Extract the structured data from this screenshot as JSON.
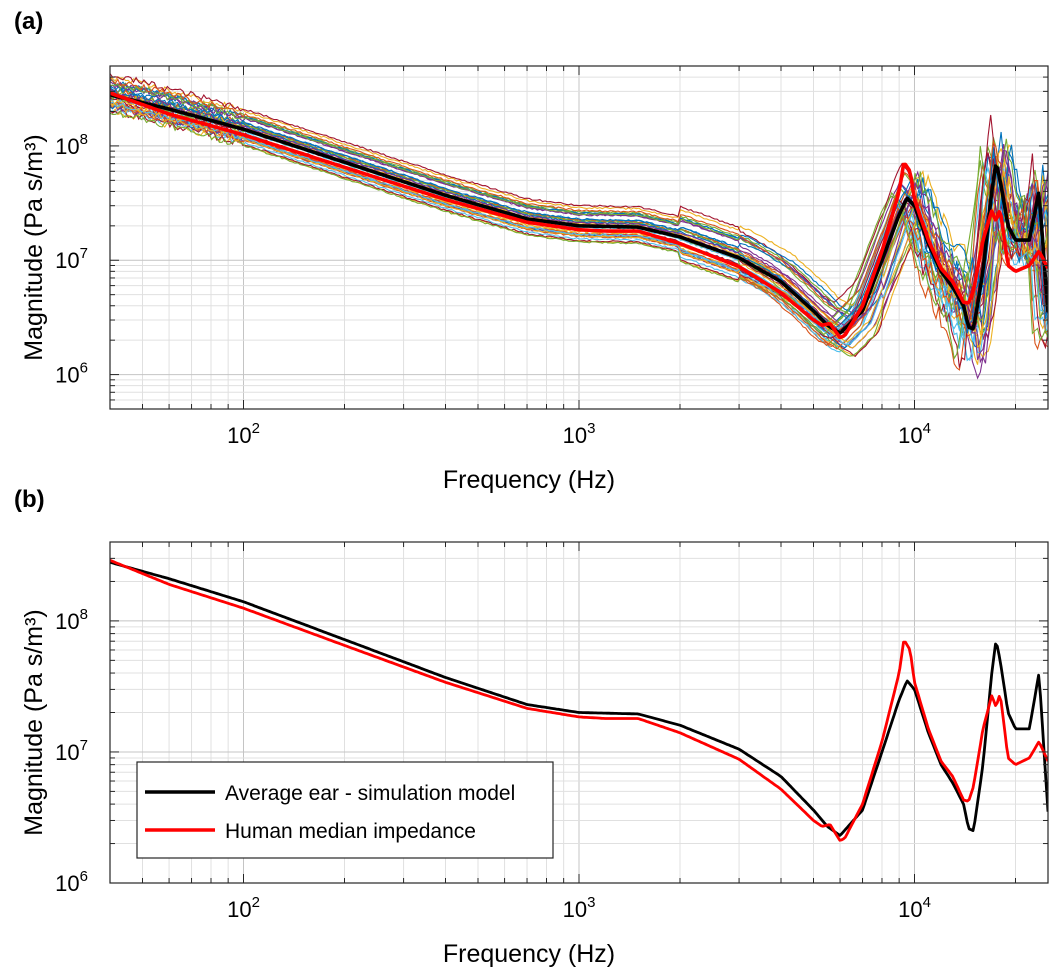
{
  "panels": [
    {
      "label": "(a)"
    },
    {
      "label": "(b)"
    }
  ],
  "colors": {
    "average_ear": "#000000",
    "human_median": "#ff0000",
    "individual_palette": [
      "#0072bd",
      "#d95319",
      "#edb120",
      "#7e2f8e",
      "#77ac30",
      "#4dbeee",
      "#a2142f"
    ]
  },
  "chart_data": [
    {
      "panel": "(a)",
      "type": "line",
      "xscale": "log",
      "yscale": "log",
      "xlabel": "Frequency (Hz)",
      "ylabel": "Magnitude (Pa s/m³)",
      "xlim": [
        40,
        25000
      ],
      "ylim": [
        500000,
        500000000
      ],
      "grid": true,
      "x_ticks": [
        {
          "value": 100,
          "mant": "10",
          "exp": "2"
        },
        {
          "value": 1000,
          "mant": "10",
          "exp": "3"
        },
        {
          "value": 10000,
          "mant": "10",
          "exp": "4"
        }
      ],
      "y_ticks": [
        {
          "value": 1000000,
          "mant": "10",
          "exp": "6"
        },
        {
          "value": 10000000,
          "mant": "10",
          "exp": "7"
        },
        {
          "value": 100000000,
          "mant": "10",
          "exp": "8"
        }
      ],
      "individual_curves_count": 40,
      "series": [
        {
          "x": [
            40,
            60,
            100,
            200,
            400,
            700,
            1000,
            1500,
            2000,
            3000,
            4000,
            5000,
            5500,
            6000,
            7000,
            8000,
            9000,
            9500,
            10000,
            11000,
            12000,
            13000,
            14000,
            14500,
            15000,
            16000,
            17000,
            17500,
            18000,
            19000,
            20000,
            22000,
            23500,
            25000
          ],
          "y": [
            280000000,
            210000000,
            140000000,
            72000000,
            37000000,
            23000000,
            20000000,
            19500000,
            16000000,
            10500000,
            6500000,
            3600000,
            2700000,
            2300000,
            3600000,
            10000000,
            25000000,
            35000000,
            30000000,
            14000000,
            8000000,
            5800000,
            4000000,
            2600000,
            2500000,
            8000000,
            40000000,
            72000000,
            50000000,
            20000000,
            15000000,
            15000000,
            40000000,
            3500000
          ]
        },
        {
          "x": [
            40,
            60,
            100,
            200,
            400,
            700,
            1000,
            1200,
            1500,
            2000,
            3000,
            4000,
            5000,
            5300,
            5600,
            6000,
            6200,
            7000,
            8000,
            9000,
            9300,
            9700,
            10000,
            11000,
            12000,
            13000,
            14000,
            14500,
            15000,
            16000,
            17000,
            17500,
            18000,
            19000,
            20000,
            22000,
            23500,
            25000
          ],
          "y": [
            290000000,
            190000000,
            125000000,
            65000000,
            34000000,
            21500000,
            18500000,
            18000000,
            18000000,
            14000000,
            8800000,
            5200000,
            3000000,
            2700000,
            2800000,
            2100000,
            2200000,
            4000000,
            12000000,
            40000000,
            72000000,
            60000000,
            34000000,
            15000000,
            8500000,
            6500000,
            4300000,
            4200000,
            5500000,
            15000000,
            27000000,
            22000000,
            28000000,
            9000000,
            8000000,
            9000000,
            12000000,
            8500000
          ]
        }
      ]
    },
    {
      "panel": "(b)",
      "type": "line",
      "xscale": "log",
      "yscale": "log",
      "xlabel": "Frequency (Hz)",
      "ylabel": "Magnitude (Pa s/m³)",
      "xlim": [
        40,
        25000
      ],
      "ylim": [
        1000000,
        400000000
      ],
      "grid": true,
      "legend_position": "bottom-left",
      "x_ticks": [
        {
          "value": 100,
          "mant": "10",
          "exp": "2"
        },
        {
          "value": 1000,
          "mant": "10",
          "exp": "3"
        },
        {
          "value": 10000,
          "mant": "10",
          "exp": "4"
        }
      ],
      "y_ticks": [
        {
          "value": 1000000,
          "mant": "10",
          "exp": "6"
        },
        {
          "value": 10000000,
          "mant": "10",
          "exp": "7"
        },
        {
          "value": 100000000,
          "mant": "10",
          "exp": "8"
        }
      ],
      "series": [
        {
          "name": "Average ear - simulation model",
          "x": [
            40,
            60,
            100,
            200,
            400,
            700,
            1000,
            1500,
            2000,
            3000,
            4000,
            5000,
            5500,
            6000,
            7000,
            8000,
            9000,
            9500,
            10000,
            11000,
            12000,
            13000,
            14000,
            14500,
            15000,
            16000,
            17000,
            17500,
            18000,
            19000,
            20000,
            22000,
            23500,
            25000
          ],
          "y": [
            280000000,
            210000000,
            140000000,
            72000000,
            37000000,
            23000000,
            20000000,
            19500000,
            16000000,
            10500000,
            6500000,
            3600000,
            2700000,
            2300000,
            3600000,
            10000000,
            25000000,
            35000000,
            30000000,
            14000000,
            8000000,
            5800000,
            4000000,
            2600000,
            2500000,
            8000000,
            40000000,
            72000000,
            50000000,
            20000000,
            15000000,
            15000000,
            40000000,
            3500000
          ]
        },
        {
          "name": "Human median impedance",
          "x": [
            40,
            60,
            100,
            200,
            400,
            700,
            1000,
            1200,
            1500,
            2000,
            3000,
            4000,
            5000,
            5300,
            5600,
            6000,
            6200,
            7000,
            8000,
            9000,
            9300,
            9700,
            10000,
            11000,
            12000,
            13000,
            14000,
            14500,
            15000,
            16000,
            17000,
            17500,
            18000,
            19000,
            20000,
            22000,
            23500,
            25000
          ],
          "y": [
            290000000,
            190000000,
            125000000,
            65000000,
            34000000,
            21500000,
            18500000,
            18000000,
            18000000,
            14000000,
            8800000,
            5200000,
            3000000,
            2700000,
            2800000,
            2100000,
            2200000,
            4000000,
            12000000,
            40000000,
            72000000,
            60000000,
            34000000,
            15000000,
            8500000,
            6500000,
            4300000,
            4200000,
            5500000,
            15000000,
            27000000,
            22000000,
            28000000,
            9000000,
            8000000,
            9000000,
            12000000,
            8500000
          ]
        }
      ]
    }
  ]
}
